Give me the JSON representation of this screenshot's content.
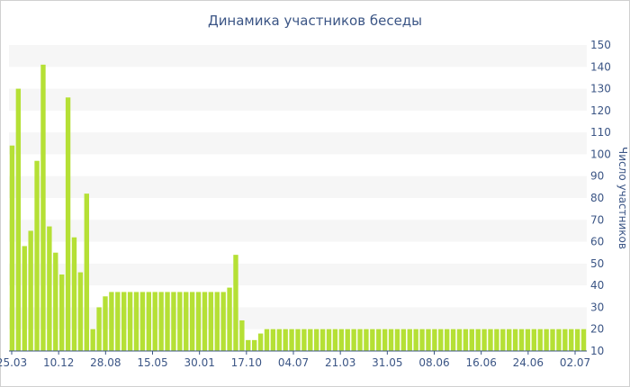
{
  "chart_data": {
    "type": "bar",
    "title": "Динамика участников беседы",
    "xlabel": "",
    "ylabel": "Число участников",
    "ylim": [
      10,
      150
    ],
    "ytick_step": 10,
    "grid": "horizontal alternating bands",
    "bar_color": "#b5e035",
    "band_color": "#f6f6f6",
    "text_color": "#3b5585",
    "x_tick_labels": [
      "25.03",
      "10.12",
      "28.08",
      "15.05",
      "30.01",
      "17.10",
      "04.07",
      "21.03",
      "31.05",
      "08.06",
      "16.06",
      "24.06",
      "02.07"
    ],
    "values": [
      104,
      130,
      58,
      65,
      97,
      141,
      67,
      55,
      45,
      126,
      62,
      46,
      82,
      20,
      30,
      35,
      37,
      37,
      37,
      37,
      37,
      37,
      37,
      37,
      37,
      37,
      37,
      37,
      37,
      37,
      37,
      37,
      37,
      37,
      37,
      39,
      54,
      24,
      15,
      15,
      18,
      20,
      20,
      20,
      20,
      20,
      20,
      20,
      20,
      20,
      20,
      20,
      20,
      20,
      20,
      20,
      20,
      20,
      20,
      20,
      20,
      20,
      20,
      20,
      20,
      20,
      20,
      20,
      20,
      20,
      20,
      20,
      20,
      20,
      20,
      20,
      20,
      20,
      20,
      20,
      20,
      20,
      20,
      20,
      20,
      20,
      20,
      20,
      20,
      20,
      20,
      20,
      20
    ]
  }
}
